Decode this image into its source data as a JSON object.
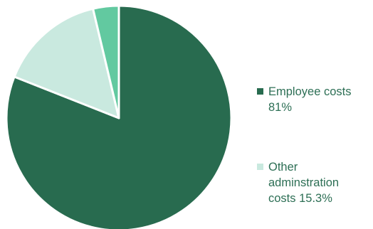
{
  "chart_data": {
    "type": "pie",
    "slices": [
      {
        "label": "Employee costs 81%",
        "value": 81.0,
        "color": "#286b4f"
      },
      {
        "label": "Other adminstration costs 15.3%",
        "value": 15.3,
        "color": "#c9e9df"
      },
      {
        "label": "",
        "value": 3.7,
        "color": "#62c9a0"
      }
    ],
    "legend": [
      {
        "label": "Employee costs 81%",
        "color": "#286b4f"
      },
      {
        "label": "Other adminstration costs 15.3%",
        "color": "#c9e9df"
      }
    ],
    "legend_position": "right"
  }
}
